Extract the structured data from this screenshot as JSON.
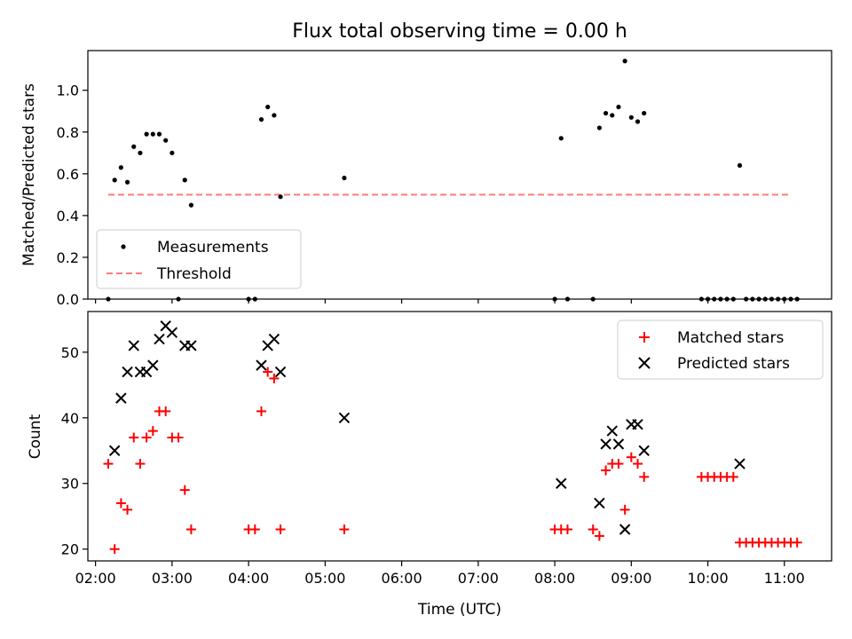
{
  "chart_data": [
    {
      "type": "scatter",
      "title": "Flux total observing time = 0.00 h",
      "xlabel": "",
      "ylabel": "Matched/Predicted stars",
      "xlim": [
        "01:54",
        "11:37"
      ],
      "ylim": [
        0,
        1.19
      ],
      "yticks": [
        0.0,
        0.2,
        0.4,
        0.6,
        0.8,
        1.0
      ],
      "xticks_shown": false,
      "series": [
        {
          "name": "Measurements",
          "marker": "dot",
          "color": "#000000",
          "points": [
            [
              "02:10",
              0.0
            ],
            [
              "02:15",
              0.57
            ],
            [
              "02:20",
              0.63
            ],
            [
              "02:25",
              0.56
            ],
            [
              "02:30",
              0.73
            ],
            [
              "02:35",
              0.7
            ],
            [
              "02:40",
              0.79
            ],
            [
              "02:45",
              0.79
            ],
            [
              "02:50",
              0.79
            ],
            [
              "02:55",
              0.76
            ],
            [
              "03:00",
              0.7
            ],
            [
              "03:05",
              0.0
            ],
            [
              "03:10",
              0.57
            ],
            [
              "03:15",
              0.45
            ],
            [
              "04:00",
              0.0
            ],
            [
              "04:05",
              0.0
            ],
            [
              "04:10",
              0.86
            ],
            [
              "04:15",
              0.92
            ],
            [
              "04:20",
              0.88
            ],
            [
              "04:25",
              0.49
            ],
            [
              "05:15",
              0.58
            ],
            [
              "08:00",
              0.0
            ],
            [
              "08:05",
              0.77
            ],
            [
              "08:10",
              0.0
            ],
            [
              "08:30",
              0.0
            ],
            [
              "08:35",
              0.82
            ],
            [
              "08:40",
              0.89
            ],
            [
              "08:45",
              0.88
            ],
            [
              "08:50",
              0.92
            ],
            [
              "08:55",
              1.14
            ],
            [
              "09:00",
              0.87
            ],
            [
              "09:05",
              0.85
            ],
            [
              "09:10",
              0.89
            ],
            [
              "09:55",
              0.0
            ],
            [
              "10:00",
              0.0
            ],
            [
              "10:05",
              0.0
            ],
            [
              "10:10",
              0.0
            ],
            [
              "10:15",
              0.0
            ],
            [
              "10:20",
              0.0
            ],
            [
              "10:25",
              0.64
            ],
            [
              "10:30",
              0.0
            ],
            [
              "10:35",
              0.0
            ],
            [
              "10:40",
              0.0
            ],
            [
              "10:45",
              0.0
            ],
            [
              "10:50",
              0.0
            ],
            [
              "10:55",
              0.0
            ],
            [
              "11:00",
              0.0
            ],
            [
              "11:05",
              0.0
            ],
            [
              "11:10",
              0.0
            ]
          ]
        },
        {
          "name": "Threshold",
          "style": "dashed",
          "color": "#ff7b7b",
          "points": [
            [
              "02:10",
              0.5
            ],
            [
              "11:05",
              0.5
            ]
          ]
        }
      ],
      "legend": "lower-left"
    },
    {
      "type": "scatter",
      "title": "",
      "xlabel": "Time (UTC)",
      "ylabel": "Count",
      "xlim": [
        "01:54",
        "11:37"
      ],
      "ylim": [
        18.2,
        56.2
      ],
      "yticks": [
        20,
        30,
        40,
        50
      ],
      "xticks": [
        "02:00",
        "03:00",
        "04:00",
        "05:00",
        "06:00",
        "07:00",
        "08:00",
        "09:00",
        "10:00",
        "11:00"
      ],
      "series": [
        {
          "name": "Matched stars",
          "marker": "plus",
          "color": "#ff0000",
          "points": [
            [
              "02:10",
              33
            ],
            [
              "02:15",
              20
            ],
            [
              "02:20",
              27
            ],
            [
              "02:25",
              26
            ],
            [
              "02:30",
              37
            ],
            [
              "02:35",
              33
            ],
            [
              "02:40",
              37
            ],
            [
              "02:45",
              38
            ],
            [
              "02:50",
              41
            ],
            [
              "02:55",
              41
            ],
            [
              "03:00",
              37
            ],
            [
              "03:05",
              37
            ],
            [
              "03:10",
              29
            ],
            [
              "03:15",
              23
            ],
            [
              "04:00",
              23
            ],
            [
              "04:05",
              23
            ],
            [
              "04:10",
              41
            ],
            [
              "04:15",
              47
            ],
            [
              "04:20",
              46
            ],
            [
              "04:25",
              23
            ],
            [
              "05:15",
              23
            ],
            [
              "08:00",
              23
            ],
            [
              "08:05",
              23
            ],
            [
              "08:10",
              23
            ],
            [
              "08:30",
              23
            ],
            [
              "08:35",
              22
            ],
            [
              "08:40",
              32
            ],
            [
              "08:45",
              33
            ],
            [
              "08:50",
              33
            ],
            [
              "08:55",
              26
            ],
            [
              "09:00",
              34
            ],
            [
              "09:05",
              33
            ],
            [
              "09:10",
              31
            ],
            [
              "09:55",
              31
            ],
            [
              "10:00",
              31
            ],
            [
              "10:05",
              31
            ],
            [
              "10:10",
              31
            ],
            [
              "10:15",
              31
            ],
            [
              "10:20",
              31
            ],
            [
              "10:25",
              21
            ],
            [
              "10:30",
              21
            ],
            [
              "10:35",
              21
            ],
            [
              "10:40",
              21
            ],
            [
              "10:45",
              21
            ],
            [
              "10:50",
              21
            ],
            [
              "10:55",
              21
            ],
            [
              "11:00",
              21
            ],
            [
              "11:05",
              21
            ],
            [
              "11:10",
              21
            ]
          ]
        },
        {
          "name": "Predicted stars",
          "marker": "x",
          "color": "#000000",
          "points": [
            [
              "02:15",
              35
            ],
            [
              "02:20",
              43
            ],
            [
              "02:25",
              47
            ],
            [
              "02:30",
              51
            ],
            [
              "02:35",
              47
            ],
            [
              "02:40",
              47
            ],
            [
              "02:45",
              48
            ],
            [
              "02:50",
              52
            ],
            [
              "02:55",
              54
            ],
            [
              "03:00",
              53
            ],
            [
              "03:10",
              51
            ],
            [
              "03:15",
              51
            ],
            [
              "04:10",
              48
            ],
            [
              "04:15",
              51
            ],
            [
              "04:20",
              52
            ],
            [
              "04:25",
              47
            ],
            [
              "05:15",
              40
            ],
            [
              "08:05",
              30
            ],
            [
              "08:35",
              27
            ],
            [
              "08:40",
              36
            ],
            [
              "08:45",
              38
            ],
            [
              "08:50",
              36
            ],
            [
              "08:55",
              23
            ],
            [
              "09:00",
              39
            ],
            [
              "09:05",
              39
            ],
            [
              "09:10",
              35
            ],
            [
              "10:25",
              33
            ]
          ]
        }
      ],
      "legend": "upper-right"
    }
  ]
}
